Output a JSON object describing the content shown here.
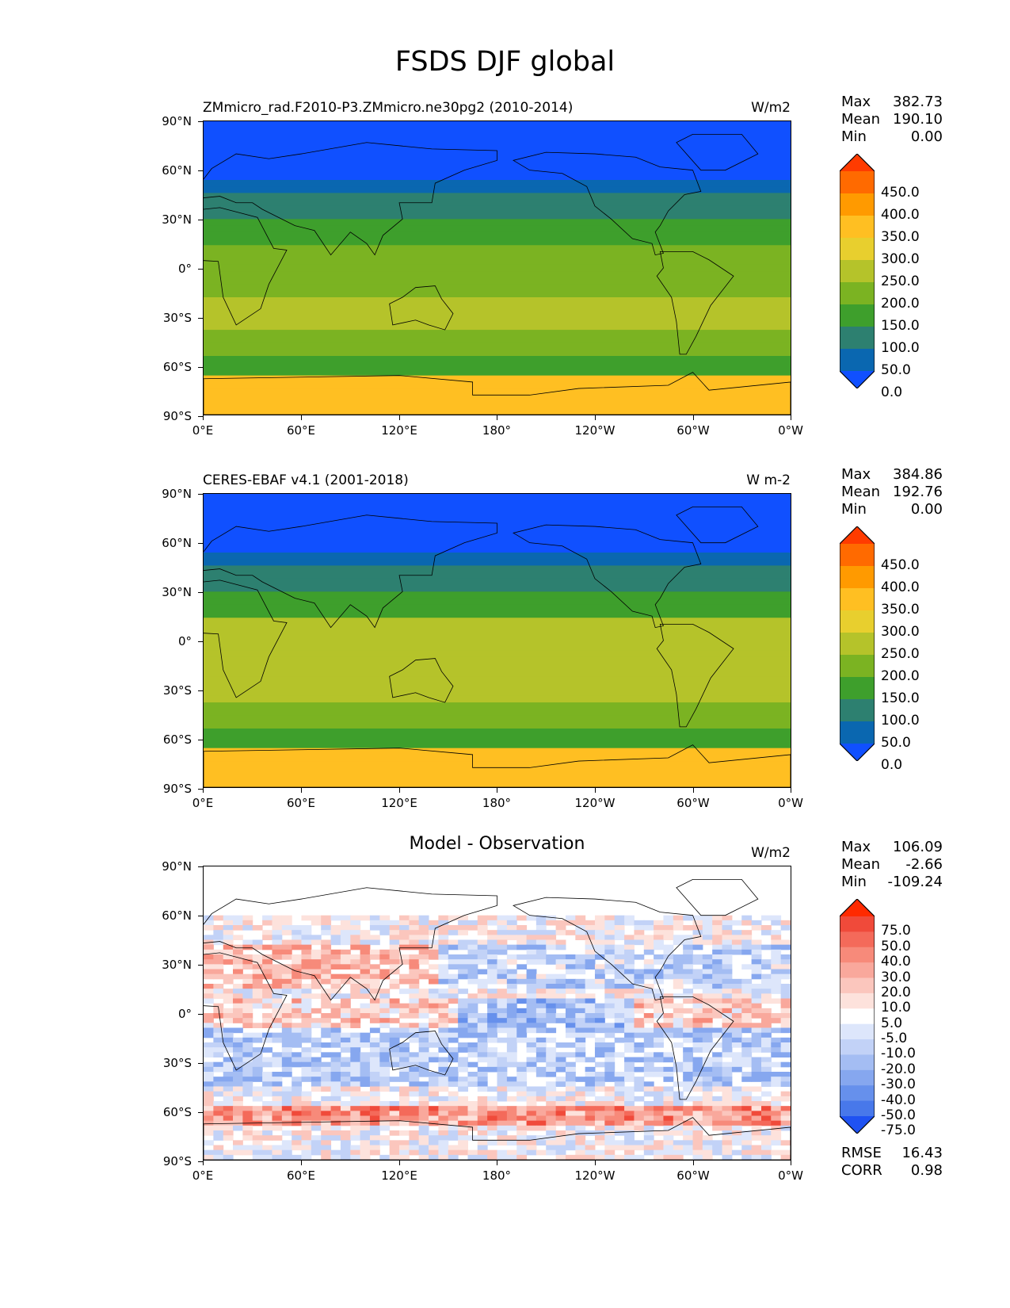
{
  "figure": {
    "title": "FSDS DJF global"
  },
  "axes": {
    "y_ticks": [
      "90°N",
      "60°N",
      "30°N",
      "0°",
      "30°S",
      "60°S",
      "90°S"
    ],
    "x_ticks": [
      "0°E",
      "60°E",
      "120°E",
      "180°",
      "120°W",
      "60°W",
      "0°W"
    ]
  },
  "panels": [
    {
      "id": "model",
      "title": "ZMmicro_rad.F2010-P3.ZMmicro.ne30pg2 (2010-2014)",
      "title_style": "left",
      "units": "W/m2",
      "stats": {
        "max_label": "Max",
        "max": "382.73",
        "mean_label": "Mean",
        "mean": "190.10",
        "min_label": "Min",
        "min": "0.00"
      },
      "colorbar_labels": [
        "450.0",
        "400.0",
        "350.0",
        "300.0",
        "250.0",
        "200.0",
        "150.0",
        "100.0",
        "50.0",
        "0.0"
      ],
      "colorbar_colors": [
        "#ff3b00",
        "#ff6a00",
        "#ff9a00",
        "#ffbf22",
        "#e8cf2e",
        "#b5c32a",
        "#7bb322",
        "#3e9f2c",
        "#2d8070",
        "#0a67b0",
        "#1050ff"
      ]
    },
    {
      "id": "obs",
      "title": "CERES-EBAF v4.1 (2001-2018)",
      "title_style": "left",
      "units": "W m-2",
      "stats": {
        "max_label": "Max",
        "max": "384.86",
        "mean_label": "Mean",
        "mean": "192.76",
        "min_label": "Min",
        "min": "0.00"
      },
      "colorbar_labels": [
        "450.0",
        "400.0",
        "350.0",
        "300.0",
        "250.0",
        "200.0",
        "150.0",
        "100.0",
        "50.0",
        "0.0"
      ],
      "colorbar_colors": [
        "#ff3b00",
        "#ff6a00",
        "#ff9a00",
        "#ffbf22",
        "#e8cf2e",
        "#b5c32a",
        "#7bb322",
        "#3e9f2c",
        "#2d8070",
        "#0a67b0",
        "#1050ff"
      ]
    },
    {
      "id": "diff",
      "title": "Model - Observation",
      "title_style": "center",
      "units": "W/m2",
      "stats": {
        "max_label": "Max",
        "max": "106.09",
        "mean_label": "Mean",
        "mean": "-2.66",
        "min_label": "Min",
        "min": "-109.24"
      },
      "colorbar_labels": [
        "75.0",
        "50.0",
        "40.0",
        "30.0",
        "20.0",
        "10.0",
        "5.0",
        "-5.0",
        "-10.0",
        "-20.0",
        "-30.0",
        "-40.0",
        "-50.0",
        "-75.0"
      ],
      "colorbar_colors": [
        "#ff2a00",
        "#f04a3a",
        "#f46a5a",
        "#f78a7a",
        "#f9a89c",
        "#fbc6bd",
        "#fde2dc",
        "#ffffff",
        "#dde6fb",
        "#c2d2f7",
        "#a4bdf3",
        "#86a7ef",
        "#6690ec",
        "#4878ea",
        "#1f52f2"
      ],
      "rmse_label": "RMSE",
      "rmse": "16.43",
      "corr_label": "CORR",
      "corr": "0.98"
    }
  ]
}
